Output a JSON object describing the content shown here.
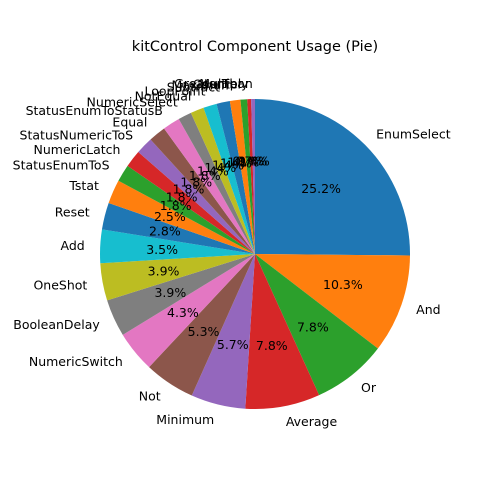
{
  "chart_data": {
    "type": "pie",
    "title": "kitControl Component Usage (Pie)",
    "start_angle_deg": 90,
    "direction": "clockwise",
    "slices": [
      {
        "label": "EnumSelect",
        "percent": 25.2,
        "pct_label": "25.2%",
        "color": "#1f77b4"
      },
      {
        "label": "And",
        "percent": 10.3,
        "pct_label": "10.3%",
        "color": "#ff7f0e"
      },
      {
        "label": "Or",
        "percent": 7.8,
        "pct_label": "7.8%",
        "color": "#2ca02c"
      },
      {
        "label": "Average",
        "percent": 7.8,
        "pct_label": "7.8%",
        "color": "#d62728"
      },
      {
        "label": "Minimum",
        "percent": 5.7,
        "pct_label": "5.7%",
        "color": "#9467bd"
      },
      {
        "label": "Not",
        "percent": 5.3,
        "pct_label": "5.3%",
        "color": "#8c564b"
      },
      {
        "label": "NumericSwitch",
        "percent": 4.3,
        "pct_label": "4.3%",
        "color": "#e377c2"
      },
      {
        "label": "BooleanDelay",
        "percent": 3.9,
        "pct_label": "3.9%",
        "color": "#7f7f7f"
      },
      {
        "label": "OneShot",
        "percent": 3.9,
        "pct_label": "3.9%",
        "color": "#bcbd22"
      },
      {
        "label": "Add",
        "percent": 3.5,
        "pct_label": "3.5%",
        "color": "#17becf"
      },
      {
        "label": "Reset",
        "percent": 2.8,
        "pct_label": "2.8%",
        "color": "#1f77b4"
      },
      {
        "label": "Tstat",
        "percent": 2.5,
        "pct_label": "2.5%",
        "color": "#ff7f0e"
      },
      {
        "label": "StatusEnumToS",
        "percent": 1.8,
        "pct_label": "1.8%",
        "color": "#2ca02c"
      },
      {
        "label": "NumericLatch",
        "percent": 1.8,
        "pct_label": "1.8%",
        "color": "#d62728"
      },
      {
        "label": "StatusNumericToS",
        "percent": 1.8,
        "pct_label": "1.8%",
        "color": "#9467bd"
      },
      {
        "label": "Equal",
        "percent": 1.8,
        "pct_label": "1.8%",
        "color": "#8c564b"
      },
      {
        "label": "StatusEnumToStatusB",
        "percent": 1.8,
        "pct_label": "1.8%",
        "color": "#e377c2"
      },
      {
        "label": "NumericSelect",
        "percent": 1.4,
        "pct_label": "1.4%",
        "color": "#7f7f7f"
      },
      {
        "label": "NotEqual",
        "percent": 1.4,
        "pct_label": "1.4%",
        "color": "#bcbd22"
      },
      {
        "label": "LoopPoint",
        "percent": 1.4,
        "pct_label": "1.4%",
        "color": "#17becf"
      },
      {
        "label": "Subtract",
        "percent": 1.4,
        "pct_label": "1.4%",
        "color": "#1f77b4"
      },
      {
        "label": "Maximum",
        "percent": 1.1,
        "pct_label": "1.1%",
        "color": "#ff7f0e"
      },
      {
        "label": "Counter",
        "percent": 0.7,
        "pct_label": "0.7%",
        "color": "#2ca02c"
      },
      {
        "label": "Multiply",
        "percent": 0.4,
        "pct_label": "0.4%",
        "color": "#d62728"
      },
      {
        "label": "GreaterThan",
        "percent": 0.4,
        "pct_label": "0.4%",
        "color": "#9467bd"
      }
    ]
  }
}
